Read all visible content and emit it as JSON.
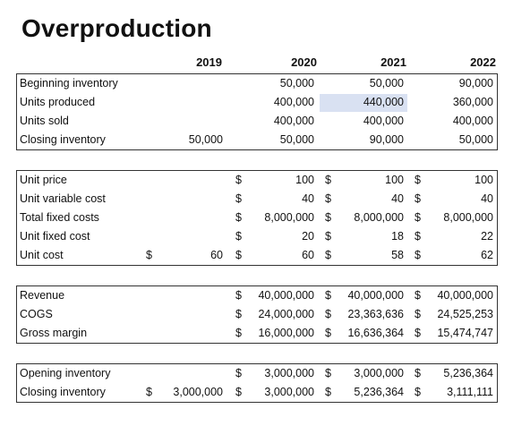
{
  "title": "Overproduction",
  "years": [
    "2019",
    "2020",
    "2021",
    "2022"
  ],
  "currency_symbol": "$",
  "highlight_color": "#d9e1f2",
  "block1": [
    {
      "label": "Beginning inventory",
      "v2019": "",
      "v2020": "50,000",
      "v2021": "50,000",
      "v2022": "90,000"
    },
    {
      "label": "Units produced",
      "v2019": "",
      "v2020": "400,000",
      "v2021": "440,000",
      "v2022": "360,000"
    },
    {
      "label": "Units sold",
      "v2019": "",
      "v2020": "400,000",
      "v2021": "400,000",
      "v2022": "400,000"
    },
    {
      "label": "Closing inventory",
      "v2019": "50,000",
      "v2020": "50,000",
      "v2021": "90,000",
      "v2022": "50,000"
    }
  ],
  "block2": [
    {
      "label": "Unit price",
      "v2019": "",
      "v2020": "100",
      "v2021": "100",
      "v2022": "100"
    },
    {
      "label": "Unit variable cost",
      "v2019": "",
      "v2020": "40",
      "v2021": "40",
      "v2022": "40"
    },
    {
      "label": "Total fixed costs",
      "v2019": "",
      "v2020": "8,000,000",
      "v2021": "8,000,000",
      "v2022": "8,000,000"
    },
    {
      "label": "Unit fixed cost",
      "v2019": "",
      "v2020": "20",
      "v2021": "18",
      "v2022": "22"
    },
    {
      "label": "Unit cost",
      "v2019": "60",
      "v2020": "60",
      "v2021": "58",
      "v2022": "62"
    }
  ],
  "block3": [
    {
      "label": "Revenue",
      "v2019": "",
      "v2020": "40,000,000",
      "v2021": "40,000,000",
      "v2022": "40,000,000"
    },
    {
      "label": "COGS",
      "v2019": "",
      "v2020": "24,000,000",
      "v2021": "23,363,636",
      "v2022": "24,525,253"
    },
    {
      "label": "Gross margin",
      "v2019": "",
      "v2020": "16,000,000",
      "v2021": "16,636,364",
      "v2022": "15,474,747"
    }
  ],
  "block4": [
    {
      "label": "Opening inventory",
      "v2019": "",
      "v2020": "3,000,000",
      "v2021": "3,000,000",
      "v2022": "5,236,364"
    },
    {
      "label": "Closing inventory",
      "v2019": "3,000,000",
      "v2020": "3,000,000",
      "v2021": "5,236,364",
      "v2022": "3,111,111"
    }
  ]
}
